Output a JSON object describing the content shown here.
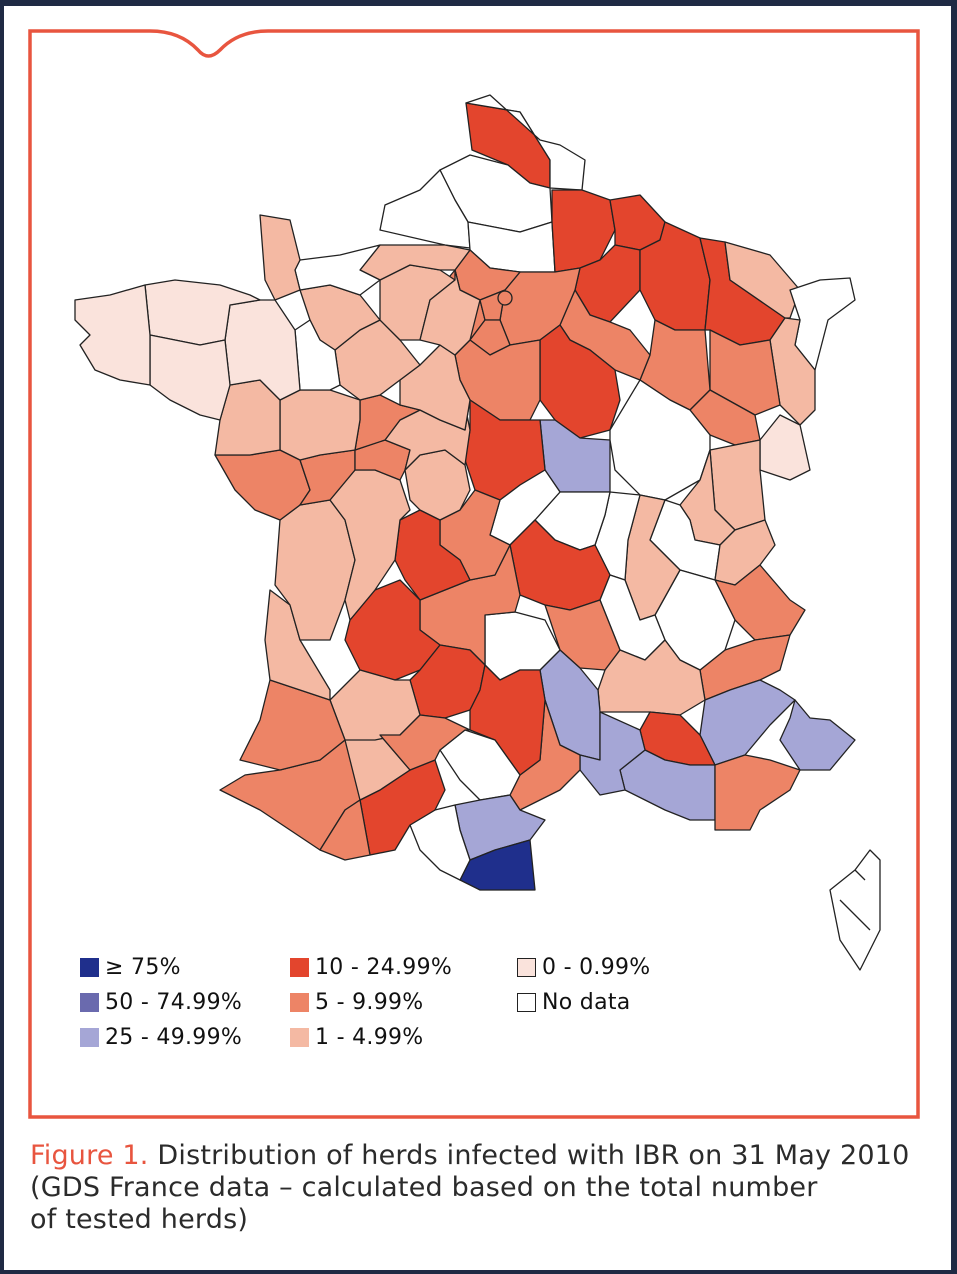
{
  "colors": {
    "frame": "#e8553f",
    "ge75": "#1f2f8c",
    "50to75": "#6a6aae",
    "25to50": "#a5a6d6",
    "10to25": "#e3452d",
    "5to10": "#ed8466",
    "1to5": "#f4b9a3",
    "0to1": "#fae3dc",
    "nodata": "#ffffff",
    "border": "#222222"
  },
  "legend": [
    {
      "label": "≥ 75%",
      "color_key": "ge75"
    },
    {
      "label": "50 - 74.99%",
      "color_key": "50to75"
    },
    {
      "label": "25 - 49.99%",
      "color_key": "25to50"
    },
    {
      "label": "10 - 24.99%",
      "color_key": "10to25"
    },
    {
      "label": "5 - 9.99%",
      "color_key": "5to10"
    },
    {
      "label": "1 - 4.99%",
      "color_key": "1to5"
    },
    {
      "label": "0 - 0.99%",
      "color_key": "0to1"
    },
    {
      "label": "No data",
      "color_key": "nodata"
    }
  ],
  "caption": {
    "figure_label": "Figure 1.",
    "line1": "Distribution of herds infected with IBR on 31 May 2010",
    "line2": "(GDS France data – calculated based on the total number",
    "line3": "of tested herds)"
  }
}
